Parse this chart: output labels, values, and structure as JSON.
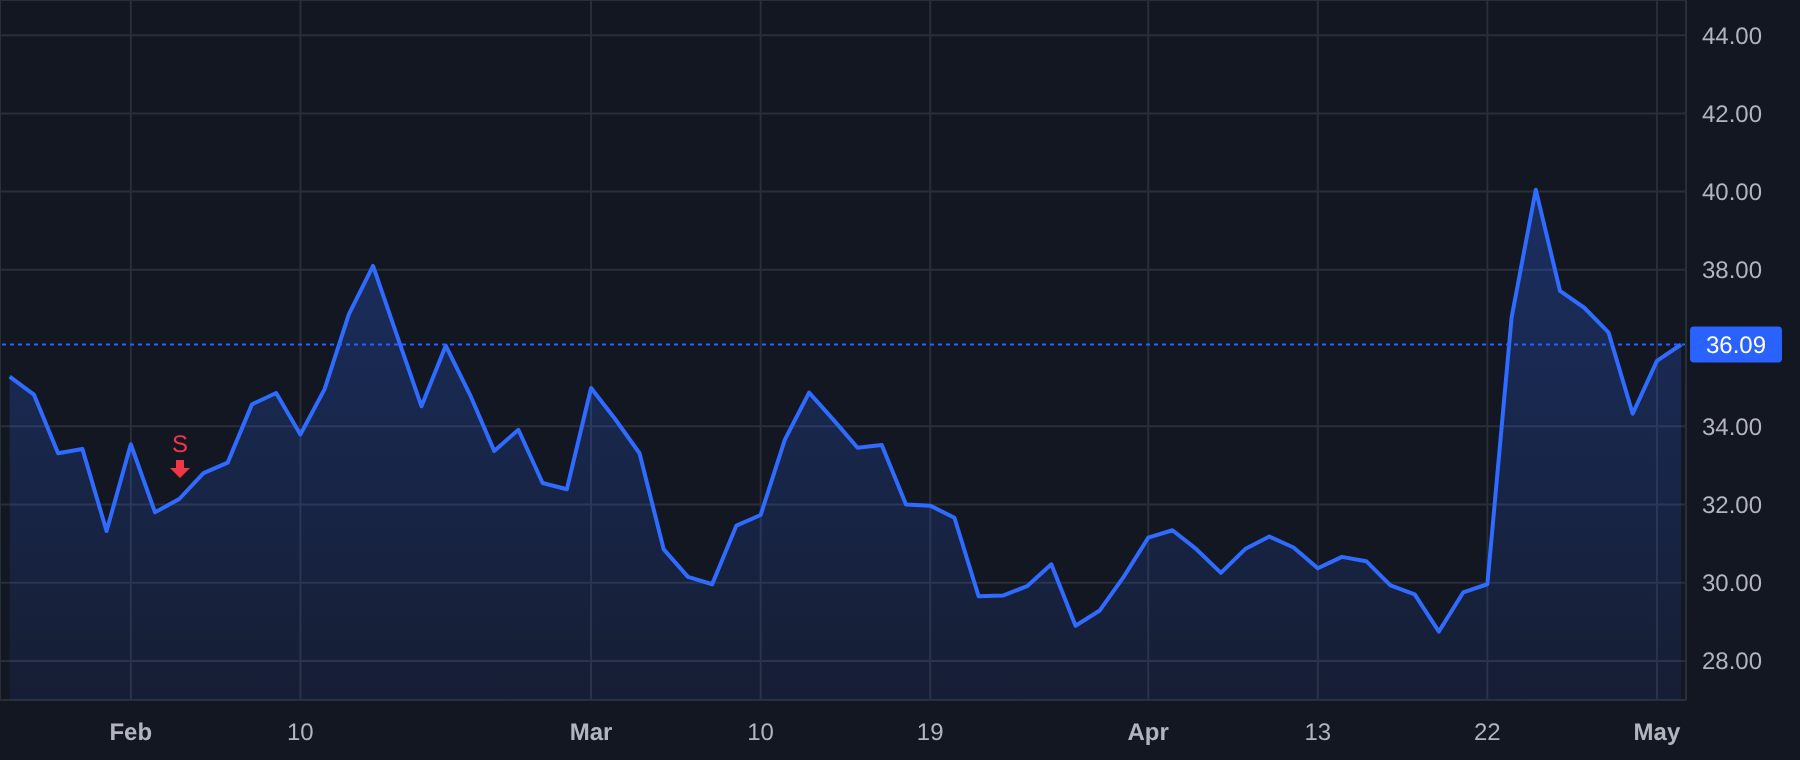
{
  "chart_data": {
    "type": "area",
    "categories": [
      null,
      null,
      null,
      null,
      null,
      "Feb",
      null,
      null,
      null,
      null,
      null,
      null,
      "10",
      null,
      null,
      null,
      null,
      null,
      null,
      null,
      null,
      null,
      null,
      null,
      "Mar",
      null,
      null,
      null,
      null,
      null,
      null,
      "10",
      null,
      null,
      null,
      null,
      null,
      null,
      "19",
      null,
      null,
      null,
      null,
      null,
      null,
      null,
      null,
      "Apr",
      null,
      null,
      null,
      null,
      null,
      null,
      "13",
      null,
      null,
      null,
      null,
      null,
      null,
      "22",
      null,
      null,
      null,
      null,
      null,
      null,
      "May",
      null
    ],
    "series": [
      {
        "color": "#2f6bff",
        "values": [
          35.27,
          34.81,
          33.31,
          33.42,
          31.32,
          33.54,
          31.8,
          32.14,
          32.8,
          33.07,
          34.56,
          34.85,
          33.79,
          34.95,
          36.86,
          38.1,
          36.3,
          34.51,
          36.06,
          34.81,
          33.37,
          33.91,
          32.55,
          32.39,
          34.98,
          34.18,
          33.31,
          30.85,
          30.15,
          29.96,
          31.46,
          31.73,
          33.66,
          34.86,
          34.17,
          33.45,
          33.52,
          32.0,
          31.97,
          31.66,
          29.65,
          29.67,
          29.91,
          30.47,
          28.9,
          29.29,
          30.16,
          31.15,
          31.34,
          30.85,
          30.25,
          30.86,
          31.18,
          30.9,
          30.37,
          30.66,
          30.55,
          29.93,
          29.7,
          28.75,
          29.75,
          29.96,
          36.78,
          40.05,
          37.46,
          37.03,
          36.4,
          34.32,
          35.67,
          36.09
        ]
      }
    ],
    "ylim": [
      27,
      44.9
    ],
    "yticks": [
      {
        "value": 28,
        "label": "28.00"
      },
      {
        "value": 30,
        "label": "30.00"
      },
      {
        "value": 32,
        "label": "32.00"
      },
      {
        "value": 34,
        "label": "34.00"
      },
      {
        "value": 38,
        "label": "38.00"
      },
      {
        "value": 40,
        "label": "40.00"
      },
      {
        "value": 42,
        "label": "42.00"
      },
      {
        "value": 44,
        "label": "44.00"
      }
    ],
    "ref_lines": [
      {
        "axis": "y",
        "value": 36.09,
        "label": "36.09",
        "color": "#2962ff",
        "line_style": "dotted"
      }
    ],
    "annotations": [
      "S"
    ],
    "grid": true,
    "marker": "none",
    "line_style": "solid"
  }
}
